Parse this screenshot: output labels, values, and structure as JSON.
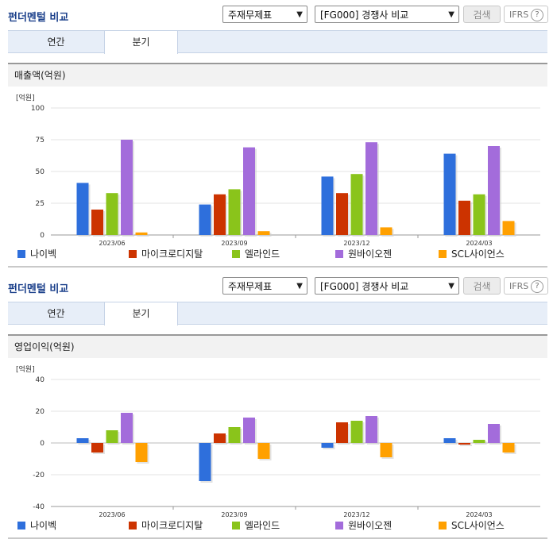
{
  "colors": {
    "나이벡": "#2e6fdc",
    "마이크로디지탈": "#cc3300",
    "엘라인드": "#8ac41b",
    "원바이오젠": "#a36cdb",
    "SCL사이언스": "#ffa000"
  },
  "panels": [
    {
      "title": "펀더멘털 비교",
      "select1": "주재무제표",
      "select2": "[FG000] 경쟁사 비교",
      "search_label": "검색",
      "ifrs_label": "IFRS",
      "help_glyph": "?",
      "tabs": [
        "연간",
        "분기"
      ],
      "active_tab": 1,
      "metric_label": "매출액(억원)",
      "unit_label": "[억원]",
      "legend": [
        "나이벡",
        "마이크로디지탈",
        "엘라인드",
        "원바이오젠",
        "SCL사이언스"
      ]
    },
    {
      "title": "펀더멘털 비교",
      "select1": "주재무제표",
      "select2": "[FG000] 경쟁사 비교",
      "search_label": "검색",
      "ifrs_label": "IFRS",
      "help_glyph": "?",
      "tabs": [
        "연간",
        "분기"
      ],
      "active_tab": 1,
      "metric_label": "영업이익(억원)",
      "unit_label": "[억원]",
      "legend": [
        "나이벡",
        "마이크로디지탈",
        "엘라인드",
        "원바이오젠",
        "SCL사이언스"
      ]
    }
  ],
  "chart_data": [
    {
      "type": "bar",
      "title": "매출액(억원)",
      "ylabel": "[억원]",
      "categories": [
        "2023/06",
        "2023/09",
        "2023/12",
        "2024/03"
      ],
      "ylim": [
        0,
        100
      ],
      "yticks": [
        0,
        25,
        50,
        75,
        100
      ],
      "grid": true,
      "legend_position": "bottom",
      "series": [
        {
          "name": "나이벡",
          "values": [
            41,
            24,
            46,
            64
          ]
        },
        {
          "name": "마이크로디지탈",
          "values": [
            20,
            32,
            33,
            27
          ]
        },
        {
          "name": "엘라인드",
          "values": [
            33,
            36,
            48,
            32
          ]
        },
        {
          "name": "원바이오젠",
          "values": [
            75,
            69,
            73,
            70
          ]
        },
        {
          "name": "SCL사이언스",
          "values": [
            2,
            3,
            6,
            11
          ]
        }
      ]
    },
    {
      "type": "bar",
      "title": "영업이익(억원)",
      "ylabel": "[억원]",
      "categories": [
        "2023/06",
        "2023/09",
        "2023/12",
        "2024/03"
      ],
      "ylim": [
        -40,
        40
      ],
      "yticks": [
        -40,
        -20,
        0,
        20,
        40
      ],
      "grid": true,
      "legend_position": "bottom",
      "series": [
        {
          "name": "나이벡",
          "values": [
            3,
            -24,
            -3,
            3
          ]
        },
        {
          "name": "마이크로디지탈",
          "values": [
            -6,
            6,
            13,
            -1
          ]
        },
        {
          "name": "엘라인드",
          "values": [
            8,
            10,
            14,
            2
          ]
        },
        {
          "name": "원바이오젠",
          "values": [
            19,
            16,
            17,
            12
          ]
        },
        {
          "name": "SCL사이언스",
          "values": [
            -12,
            -10,
            -9,
            -6
          ]
        }
      ]
    }
  ]
}
